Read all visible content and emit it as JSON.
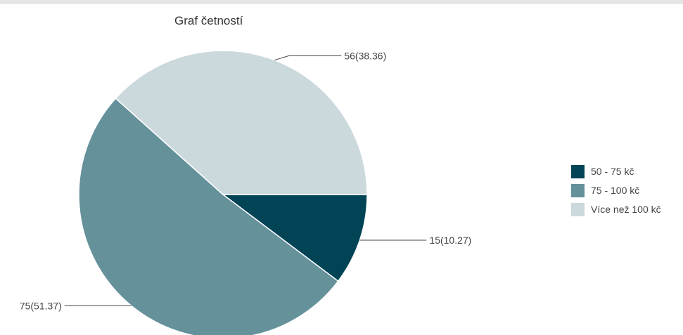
{
  "chart_data": {
    "type": "pie",
    "title": "Graf četností",
    "categories": [
      "50 - 75 kč",
      "75 - 100 kč",
      "Více než 100 kč"
    ],
    "values": [
      15,
      75,
      56
    ],
    "percentages": [
      10.27,
      51.37,
      38.36
    ],
    "data_labels": [
      "15(10.27)",
      "75(51.37)",
      "56(38.36)"
    ],
    "colors": [
      "#004456",
      "#65919b",
      "#cbd9dd"
    ],
    "legend_position": "right"
  }
}
